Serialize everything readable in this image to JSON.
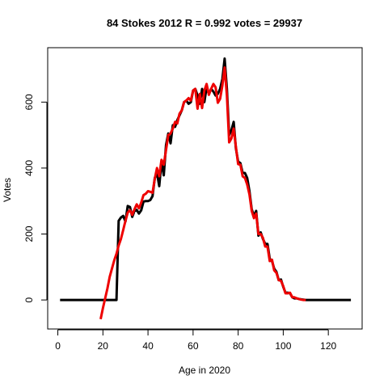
{
  "chart_data": {
    "type": "line",
    "title": "84 Stokes 2012 R = 0.992 votes = 29937",
    "xlabel": "Age in 2020",
    "ylabel": "Votes",
    "xlim": [
      -4.5,
      135
    ],
    "ylim": [
      -88,
      765
    ],
    "xticks": [
      0,
      20,
      40,
      60,
      80,
      100,
      120
    ],
    "yticks": [
      0,
      200,
      400,
      600
    ],
    "grid": false,
    "series": [
      {
        "color": "#000000",
        "points": [
          [
            1,
            0
          ],
          [
            5,
            0
          ],
          [
            10,
            0
          ],
          [
            15,
            0
          ],
          [
            20,
            0
          ],
          [
            22,
            0
          ],
          [
            24,
            0
          ],
          [
            26,
            0
          ],
          [
            27,
            240
          ],
          [
            28,
            250
          ],
          [
            29,
            255
          ],
          [
            30,
            238
          ],
          [
            31,
            285
          ],
          [
            32,
            282
          ],
          [
            33,
            252
          ],
          [
            34,
            270
          ],
          [
            35,
            273
          ],
          [
            36,
            262
          ],
          [
            37,
            272
          ],
          [
            38,
            298
          ],
          [
            39,
            300
          ],
          [
            40,
            300
          ],
          [
            41,
            303
          ],
          [
            42,
            315
          ],
          [
            43,
            370
          ],
          [
            44,
            385
          ],
          [
            45,
            345
          ],
          [
            46,
            420
          ],
          [
            47,
            378
          ],
          [
            48,
            470
          ],
          [
            49,
            505
          ],
          [
            50,
            475
          ],
          [
            51,
            530
          ],
          [
            52,
            525
          ],
          [
            53,
            545
          ],
          [
            54,
            560
          ],
          [
            55,
            575
          ],
          [
            56,
            600
          ],
          [
            57,
            605
          ],
          [
            58,
            595
          ],
          [
            59,
            600
          ],
          [
            60,
            635
          ],
          [
            61,
            640
          ],
          [
            62,
            620
          ],
          [
            63,
            595
          ],
          [
            64,
            640
          ],
          [
            65,
            600
          ],
          [
            66,
            645
          ],
          [
            67,
            625
          ],
          [
            68,
            640
          ],
          [
            69,
            632
          ],
          [
            70,
            620
          ],
          [
            71,
            625
          ],
          [
            72,
            640
          ],
          [
            73,
            670
          ],
          [
            74,
            732
          ],
          [
            75,
            640
          ],
          [
            76,
            500
          ],
          [
            77,
            515
          ],
          [
            78,
            540
          ],
          [
            79,
            460
          ],
          [
            80,
            420
          ],
          [
            81,
            415
          ],
          [
            82,
            385
          ],
          [
            83,
            385
          ],
          [
            84,
            370
          ],
          [
            85,
            330
          ],
          [
            86,
            275
          ],
          [
            87,
            255
          ],
          [
            88,
            270
          ],
          [
            89,
            195
          ],
          [
            90,
            205
          ],
          [
            91,
            185
          ],
          [
            92,
            170
          ],
          [
            93,
            170
          ],
          [
            94,
            125
          ],
          [
            95,
            118
          ],
          [
            96,
            95
          ],
          [
            97,
            85
          ],
          [
            98,
            60
          ],
          [
            99,
            62
          ],
          [
            100,
            40
          ],
          [
            101,
            22
          ],
          [
            102,
            22
          ],
          [
            103,
            20
          ],
          [
            104,
            8
          ],
          [
            105,
            5
          ],
          [
            106,
            5
          ],
          [
            107,
            3
          ],
          [
            108,
            2
          ],
          [
            110,
            0
          ],
          [
            115,
            0
          ],
          [
            120,
            0
          ],
          [
            125,
            0
          ],
          [
            130,
            0
          ]
        ]
      },
      {
        "color": "#ee0000",
        "points": [
          [
            19,
            -58
          ],
          [
            20,
            -25
          ],
          [
            21,
            5
          ],
          [
            22,
            35
          ],
          [
            23,
            70
          ],
          [
            24,
            95
          ],
          [
            25,
            120
          ],
          [
            26,
            140
          ],
          [
            27,
            165
          ],
          [
            28,
            185
          ],
          [
            29,
            212
          ],
          [
            30,
            240
          ],
          [
            31,
            265
          ],
          [
            32,
            272
          ],
          [
            33,
            258
          ],
          [
            34,
            275
          ],
          [
            35,
            290
          ],
          [
            36,
            278
          ],
          [
            37,
            295
          ],
          [
            38,
            318
          ],
          [
            39,
            322
          ],
          [
            40,
            330
          ],
          [
            41,
            328
          ],
          [
            42,
            325
          ],
          [
            43,
            368
          ],
          [
            44,
            400
          ],
          [
            45,
            375
          ],
          [
            46,
            425
          ],
          [
            47,
            410
          ],
          [
            48,
            455
          ],
          [
            49,
            500
          ],
          [
            50,
            505
          ],
          [
            51,
            520
          ],
          [
            52,
            540
          ],
          [
            53,
            535
          ],
          [
            54,
            565
          ],
          [
            55,
            575
          ],
          [
            56,
            600
          ],
          [
            57,
            605
          ],
          [
            58,
            612
          ],
          [
            59,
            605
          ],
          [
            60,
            635
          ],
          [
            61,
            640
          ],
          [
            62,
            580
          ],
          [
            63,
            625
          ],
          [
            64,
            582
          ],
          [
            65,
            635
          ],
          [
            66,
            655
          ],
          [
            67,
            622
          ],
          [
            68,
            640
          ],
          [
            69,
            655
          ],
          [
            70,
            645
          ],
          [
            71,
            598
          ],
          [
            72,
            610
          ],
          [
            73,
            650
          ],
          [
            74,
            705
          ],
          [
            75,
            620
          ],
          [
            76,
            478
          ],
          [
            77,
            490
          ],
          [
            78,
            520
          ],
          [
            79,
            465
          ],
          [
            80,
            412
          ],
          [
            81,
            410
          ],
          [
            82,
            375
          ],
          [
            83,
            370
          ],
          [
            84,
            350
          ],
          [
            85,
            320
          ],
          [
            86,
            270
          ],
          [
            87,
            248
          ],
          [
            88,
            262
          ],
          [
            89,
            200
          ],
          [
            90,
            200
          ],
          [
            91,
            188
          ],
          [
            92,
            162
          ],
          [
            93,
            162
          ],
          [
            94,
            118
          ],
          [
            95,
            122
          ],
          [
            96,
            90
          ],
          [
            97,
            82
          ],
          [
            98,
            60
          ],
          [
            99,
            58
          ],
          [
            100,
            42
          ],
          [
            101,
            20
          ],
          [
            102,
            20
          ],
          [
            103,
            22
          ],
          [
            104,
            8
          ],
          [
            105,
            8
          ],
          [
            106,
            5
          ],
          [
            107,
            3
          ],
          [
            108,
            1
          ],
          [
            109,
            0
          ],
          [
            110,
            0
          ]
        ]
      }
    ]
  }
}
